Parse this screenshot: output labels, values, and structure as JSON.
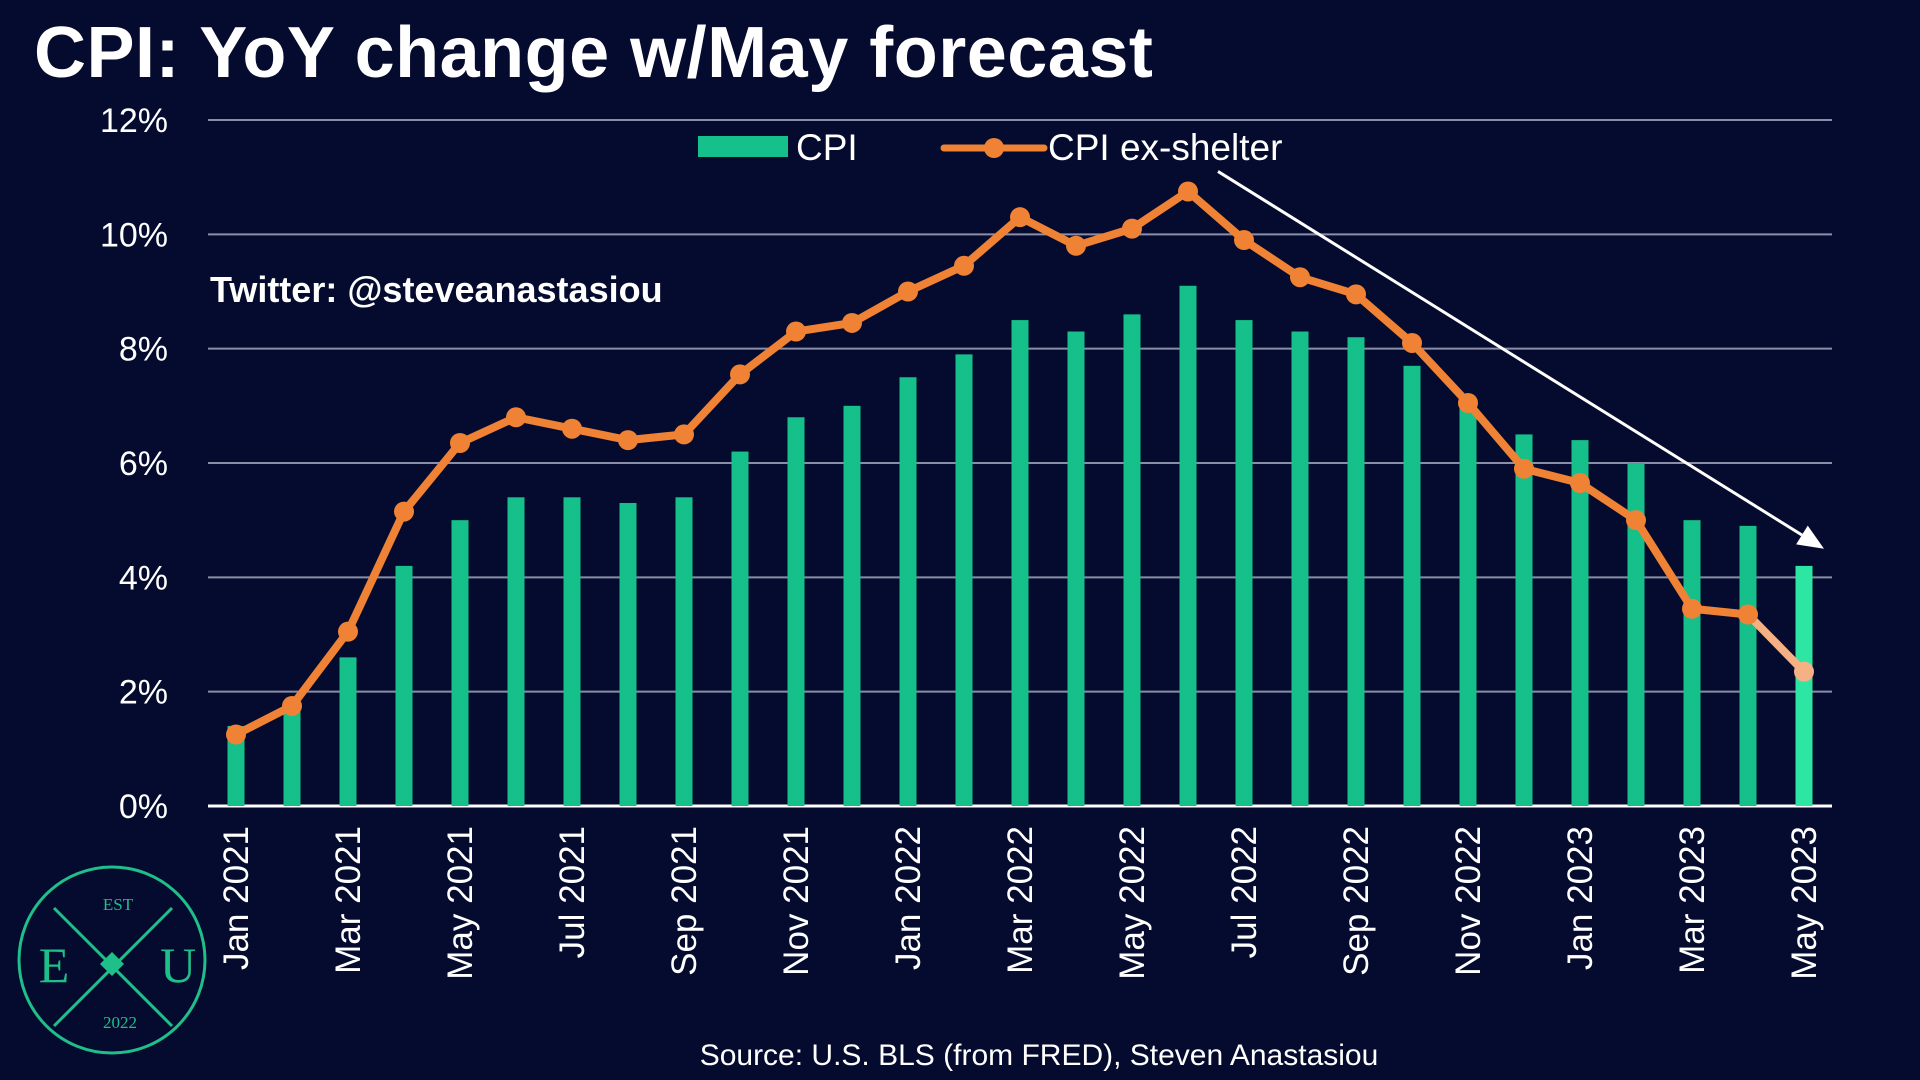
{
  "title": "CPI: YoY change w/May forecast",
  "twitter": "Twitter: @steveanastasiou",
  "source": "Source: U.S. BLS (from FRED), Steven Anastasiou",
  "logo": {
    "top": "EST",
    "left": "E",
    "right": "U",
    "bottom": "2022"
  },
  "colors": {
    "background": "#050b2e",
    "cpi_bar": "#16c08a",
    "cpi_bar_forecast": "#2ee6a4",
    "ex_shelter": "#ef8234",
    "ex_shelter_forecast": "#f5b083",
    "grid": "#8a8ea6",
    "arrow": "#ffffff",
    "logo": "#1fbf8a"
  },
  "chart_data": {
    "type": "bar",
    "title": "CPI: YoY change w/May forecast",
    "ylim": [
      0,
      12
    ],
    "yticks": [
      "0%",
      "2%",
      "4%",
      "6%",
      "8%",
      "10%",
      "12%"
    ],
    "grid": true,
    "legend_position": "top-center",
    "categories": [
      "Jan 2021",
      "Feb 2021",
      "Mar 2021",
      "Apr 2021",
      "May 2021",
      "Jun 2021",
      "Jul 2021",
      "Aug 2021",
      "Sep 2021",
      "Oct 2021",
      "Nov 2021",
      "Dec 2021",
      "Jan 2022",
      "Feb 2022",
      "Mar 2022",
      "Apr 2022",
      "May 2022",
      "Jun 2022",
      "Jul 2022",
      "Aug 2022",
      "Sep 2022",
      "Oct 2022",
      "Nov 2022",
      "Dec 2022",
      "Jan 2023",
      "Feb 2023",
      "Mar 2023",
      "Apr 2023",
      "May 2023"
    ],
    "tick_labels": [
      "Jan 2021",
      "Mar 2021",
      "May 2021",
      "Jul 2021",
      "Sep 2021",
      "Nov 2021",
      "Jan 2022",
      "Mar 2022",
      "May 2022",
      "Jul 2022",
      "Sep 2022",
      "Nov 2022",
      "Jan 2023",
      "Mar 2023",
      "May 2023"
    ],
    "series": [
      {
        "name": "CPI",
        "type": "bar",
        "values": [
          1.4,
          1.7,
          2.6,
          4.2,
          5.0,
          5.4,
          5.4,
          5.3,
          5.4,
          6.2,
          6.8,
          7.0,
          7.5,
          7.9,
          8.5,
          8.3,
          8.6,
          9.1,
          8.5,
          8.3,
          8.2,
          7.7,
          7.1,
          6.5,
          6.4,
          6.0,
          5.0,
          4.9,
          4.2
        ]
      },
      {
        "name": "CPI ex-shelter",
        "type": "line",
        "values": [
          1.25,
          1.75,
          3.05,
          5.15,
          6.35,
          6.8,
          6.6,
          6.4,
          6.5,
          7.55,
          8.3,
          8.45,
          9.0,
          9.45,
          10.3,
          9.8,
          10.1,
          10.75,
          9.9,
          9.25,
          8.95,
          8.1,
          7.05,
          5.9,
          5.65,
          5.0,
          3.45,
          3.35,
          2.35
        ]
      }
    ],
    "forecast_from": "May 2023",
    "annotations": [
      {
        "type": "arrow",
        "from": [
          "Jun 2022",
          11.1
        ],
        "to": [
          "May 2023",
          4.5
        ]
      }
    ]
  }
}
